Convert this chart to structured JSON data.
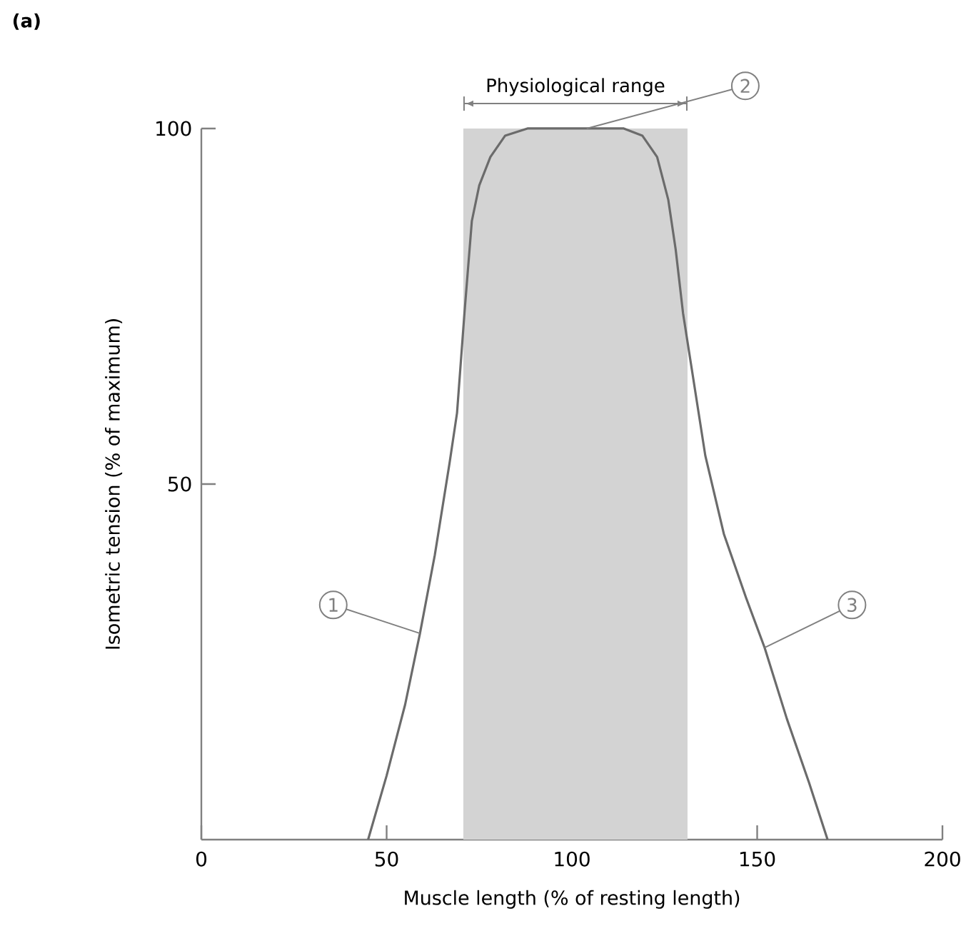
{
  "chart_data": {
    "type": "line",
    "xlabel": "Muscle length (% of resting length)",
    "ylabel": "Isometric tension (% of maximum)",
    "x": [
      45,
      50,
      55,
      59,
      63,
      67,
      69,
      71,
      73,
      75,
      78,
      82,
      88,
      114,
      119,
      123,
      126,
      128,
      130,
      133,
      136,
      141,
      147,
      152,
      158,
      164,
      169
    ],
    "values": [
      0,
      9,
      19,
      29,
      40,
      53,
      60,
      74,
      87,
      92,
      96,
      99,
      100,
      100,
      99,
      96,
      90,
      83,
      74,
      64,
      54,
      43,
      34,
      27,
      17,
      8,
      0
    ],
    "color": "#6b6b6b",
    "marker": "none",
    "line_style": "solid",
    "xlim": [
      0,
      200
    ],
    "ylim": [
      0,
      100
    ],
    "xticks": [
      0,
      50,
      100,
      150,
      200
    ],
    "yticks": [
      50,
      100
    ],
    "bands": [
      {
        "axis": "x",
        "from": 70.7,
        "to": 131.2,
        "label": "Physiological range",
        "color": "#d3d3d3"
      }
    ],
    "annotations": [
      "(a)",
      {
        "text": "1",
        "x": 59,
        "y": 29
      },
      {
        "text": "2",
        "x": 104,
        "y": 100
      },
      {
        "text": "3",
        "x": 152,
        "y": 27
      }
    ]
  }
}
